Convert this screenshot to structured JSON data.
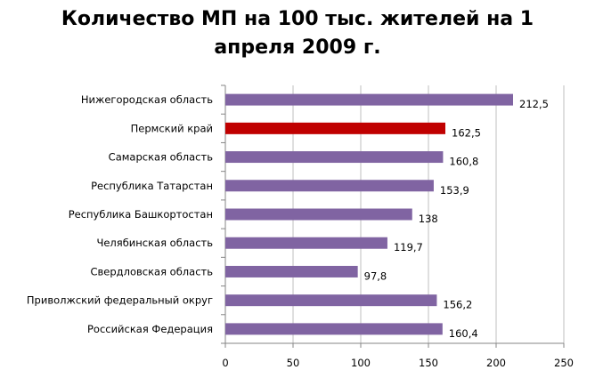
{
  "chart_data": {
    "type": "bar",
    "orientation": "horizontal",
    "title_line1": "Количество МП на 100 тыс. жителей на 1",
    "title_line2": "апреля 2009 г.",
    "categories": [
      "Нижегородская область",
      "Пермский край",
      "Самарская область",
      "Республика Татарстан",
      "Республика Башкортостан",
      "Челябинская область",
      "Свердловская область",
      "Приволжский федеральный округ",
      "Российская Федерация"
    ],
    "values": [
      212.5,
      162.5,
      160.8,
      153.9,
      138,
      119.7,
      97.8,
      156.2,
      160.4
    ],
    "value_labels": [
      "212,5",
      "162,5",
      "160,8",
      "153,9",
      "138",
      "119,7",
      "97,8",
      "156,2",
      "160,4"
    ],
    "highlight_index": 1,
    "xlim": [
      0,
      250
    ],
    "xticks": [
      0,
      50,
      100,
      150,
      200,
      250
    ],
    "grid": true,
    "legend": "none",
    "colors": {
      "bar": "#8064A2",
      "highlight": "#C00000",
      "grid": "#BFBFBF"
    }
  }
}
